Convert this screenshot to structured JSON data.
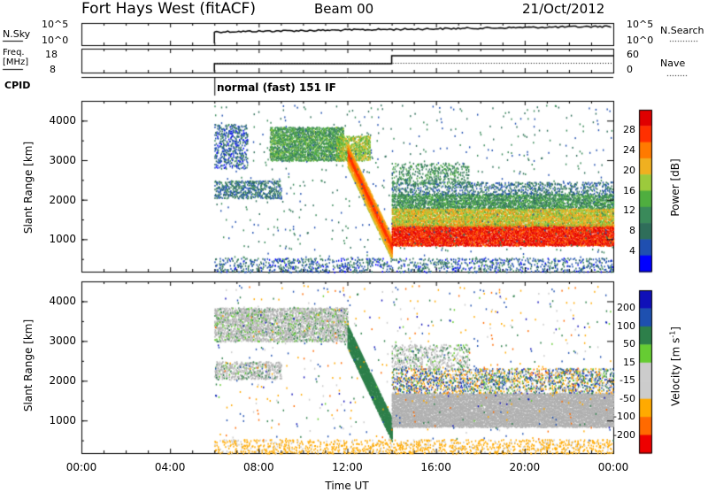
{
  "header": {
    "title": "Fort Hays West (fitACF)",
    "beam": "Beam 00",
    "date": "21/Oct/2012"
  },
  "panels": {
    "nsky_label": "N.Sky",
    "nsearch_label": "N.Search",
    "freq_label_1": "Freq.",
    "freq_label_2": "[MHz]",
    "nave_label": "Nave",
    "cpid_label": "CPID",
    "cpid_text": "normal (fast) 151 IF",
    "nsky_ticks": [
      "10^5",
      "10^0"
    ],
    "nsearch_ticks": [
      "10^5",
      "10^0"
    ],
    "freq_ticks": [
      "18",
      "8"
    ],
    "nave_ticks": [
      "60",
      "0"
    ]
  },
  "colors": {
    "power": [
      "#0000ff",
      "#1f4fb0",
      "#2f6e5a",
      "#3a8a5a",
      "#4fae3f",
      "#9cca3c",
      "#f0b020",
      "#ff7a00",
      "#ff3000",
      "#e00000"
    ],
    "velocity": [
      "#ee0000",
      "#ff6a00",
      "#ffaa00",
      "#cccccc",
      "#cccccc",
      "#66cc33",
      "#2d7f4a",
      "#1e50b0",
      "#1010b8"
    ],
    "ground_scatter": "#b0b0b0"
  },
  "chart_data": [
    {
      "type": "heatmap",
      "title": "Power",
      "xlabel": "Time UT",
      "ylabel": "Slant Range [km]",
      "xlim": [
        "00:00",
        "24:00"
      ],
      "ylim": [
        180,
        4500
      ],
      "x_ticks": [
        "00:00",
        "04:00",
        "08:00",
        "12:00",
        "16:00",
        "20:00",
        "00:00"
      ],
      "y_ticks": [
        1000,
        2000,
        3000,
        4000
      ],
      "colorbar": {
        "label": "Power [dB]",
        "ticks": [
          4,
          8,
          12,
          16,
          20,
          24,
          28
        ],
        "range": [
          0,
          30
        ]
      },
      "features": [
        {
          "type": "patch",
          "t": [
            6.0,
            10.0
          ],
          "range_km": [
            3000,
            3900
          ],
          "value_db": 8
        },
        {
          "type": "patch",
          "t": [
            8.5,
            11.5
          ],
          "range_km": [
            3100,
            3800
          ],
          "value_db": 14
        },
        {
          "type": "patch",
          "t": [
            6.0,
            9.0
          ],
          "range_km": [
            2050,
            2500
          ],
          "value_db": 8
        },
        {
          "type": "descending_band",
          "t": [
            12.0,
            14.0
          ],
          "range_km": [
            3200,
            850
          ],
          "value_db": 24
        },
        {
          "type": "band",
          "t": [
            14.0,
            24.0
          ],
          "range_km": [
            850,
            1400
          ],
          "value_db": 26
        },
        {
          "type": "band",
          "t": [
            14.0,
            24.0
          ],
          "range_km": [
            1400,
            2100
          ],
          "value_db": 13
        },
        {
          "type": "band",
          "t": [
            14.0,
            24.0
          ],
          "range_km": [
            2100,
            2400
          ],
          "value_db": 8
        }
      ]
    },
    {
      "type": "heatmap",
      "title": "Velocity",
      "xlabel": "Time UT",
      "ylabel": "Slant Range [km]",
      "xlim": [
        "00:00",
        "24:00"
      ],
      "ylim": [
        180,
        4500
      ],
      "x_ticks": [
        "00:00",
        "04:00",
        "08:00",
        "12:00",
        "16:00",
        "20:00",
        "00:00"
      ],
      "y_ticks": [
        1000,
        2000,
        3000,
        4000
      ],
      "colorbar": {
        "label": "Velocity [m s-1]",
        "ticks": [
          200,
          100,
          50,
          15,
          -15,
          -50,
          -100,
          -200
        ],
        "range": [
          -250,
          250
        ]
      },
      "features": [
        {
          "type": "patch",
          "t": [
            6.0,
            12.0
          ],
          "range_km": [
            3000,
            3900
          ],
          "value_ms": 0
        },
        {
          "type": "descending_band",
          "t": [
            12.0,
            14.0
          ],
          "range_km": [
            3200,
            850
          ],
          "value_ms": 30
        },
        {
          "type": "band",
          "t": [
            14.0,
            24.0
          ],
          "range_km": [
            850,
            1700
          ],
          "value_ms": 0
        },
        {
          "type": "band",
          "t": [
            6.0,
            24.0
          ],
          "range_km": [
            180,
            500
          ],
          "value_ms": -60
        }
      ]
    }
  ],
  "timeseries": {
    "nsky": {
      "t": [
        6.0,
        24.0
      ],
      "level": 0.28
    },
    "nsearch": {
      "t": [
        6.0,
        24.0
      ],
      "level": 0.28
    },
    "freq_mhz": {
      "t": [
        6.0,
        14.0,
        24.0
      ],
      "values": [
        10.5,
        10.5,
        16.5
      ]
    },
    "nave": {
      "t": [
        6.0,
        24.0
      ],
      "values": [
        18,
        18
      ]
    }
  },
  "axis_labels": {
    "time": "Time UT",
    "range": "Slant Range [km]",
    "power_cb": "Power [dB]",
    "velocity_cb_prefix": "Velocity [m s",
    "velocity_cb_sup": "-1",
    "velocity_cb_suffix": "]"
  }
}
